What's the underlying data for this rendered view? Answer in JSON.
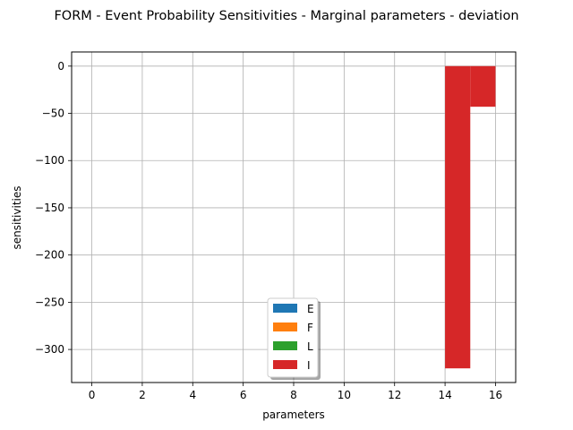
{
  "chart_data": {
    "type": "bar",
    "title": "FORM - Event Probability Sensitivities - Marginal parameters - deviation",
    "xlabel": "parameters",
    "ylabel": "sensitivities",
    "xlim": [
      -0.8,
      16.8
    ],
    "ylim": [
      -335,
      15
    ],
    "xticks": [
      0,
      2,
      4,
      6,
      8,
      10,
      12,
      14,
      16
    ],
    "yticks": [
      0,
      -50,
      -100,
      -150,
      -200,
      -250,
      -300
    ],
    "ytick_labels": [
      "0",
      "−50",
      "−100",
      "−150",
      "−200",
      "−250",
      "−300"
    ],
    "grid": true,
    "legend_position": "lower center",
    "series": [
      {
        "name": "E",
        "color": "#1f77b4",
        "bars": [
          {
            "x": 0,
            "width": 1,
            "value": 0
          },
          {
            "x": 1,
            "width": 1,
            "value": 0
          },
          {
            "x": 2,
            "width": 1,
            "value": 0
          },
          {
            "x": 3,
            "width": 1,
            "value": 0
          }
        ]
      },
      {
        "name": "F",
        "color": "#ff7f0e",
        "bars": [
          {
            "x": 4,
            "width": 1,
            "value": 0
          },
          {
            "x": 5,
            "width": 1,
            "value": 0
          },
          {
            "x": 6,
            "width": 1,
            "value": 0
          },
          {
            "x": 7,
            "width": 1,
            "value": 0
          }
        ]
      },
      {
        "name": "L",
        "color": "#2ca02c",
        "bars": [
          {
            "x": 8,
            "width": 1,
            "value": 0
          },
          {
            "x": 9,
            "width": 1,
            "value": 0
          },
          {
            "x": 10,
            "width": 1,
            "value": 0
          },
          {
            "x": 11,
            "width": 1,
            "value": 0
          }
        ]
      },
      {
        "name": "I",
        "color": "#d62728",
        "bars": [
          {
            "x": 12,
            "width": 1,
            "value": 0
          },
          {
            "x": 13,
            "width": 1,
            "value": 0
          },
          {
            "x": 14,
            "width": 1,
            "value": -320
          },
          {
            "x": 15,
            "width": 1,
            "value": -43
          }
        ]
      }
    ]
  }
}
